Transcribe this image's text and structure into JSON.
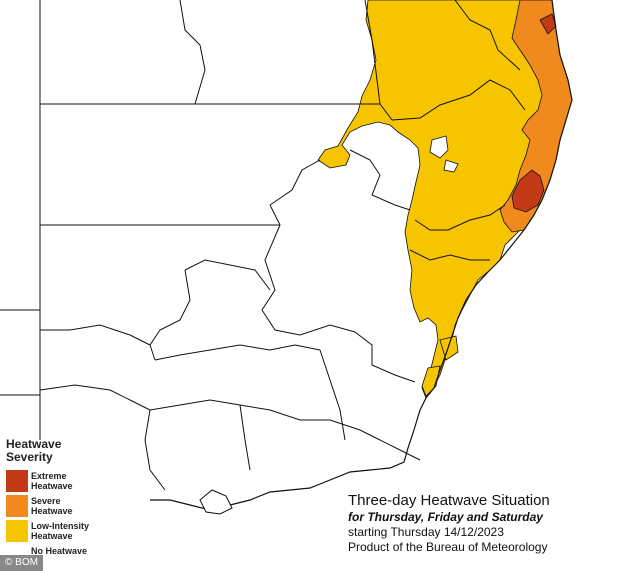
{
  "colors": {
    "extreme": "#C33B16",
    "severe": "#F08A1E",
    "low": "#F7C500",
    "none": "#FFFFFF",
    "boundary": "#111111"
  },
  "legend": {
    "title": "Heatwave\nSeverity",
    "items": [
      {
        "key": "extreme",
        "label": "Extreme\nHeatwave",
        "color": "#C33B16"
      },
      {
        "key": "severe",
        "label": "Severe\nHeatwave",
        "color": "#F08A1E"
      },
      {
        "key": "low",
        "label": "Low-Intensity\nHeatwave",
        "color": "#F7C500"
      },
      {
        "key": "none",
        "label": "No Heatwave",
        "color": "#FFFFFF"
      }
    ]
  },
  "caption": {
    "title": "Three-day Heatwave Situation",
    "subtitle": "for Thursday, Friday and Saturday",
    "starting": "starting Thursday 14/12/2023",
    "product": "Product of the Bureau of Meteorology"
  },
  "credit": "© BOM"
}
